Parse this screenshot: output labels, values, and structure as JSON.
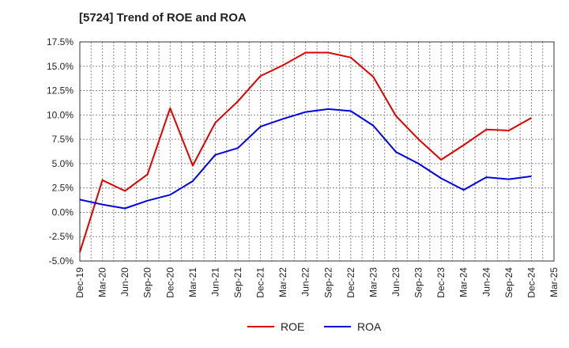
{
  "chart_data": {
    "type": "line",
    "title": "[5724]  Trend of ROE and ROA",
    "xlabel": "",
    "ylabel": "",
    "categories": [
      "Dec-19",
      "Mar-20",
      "Jun-20",
      "Sep-20",
      "Dec-20",
      "Mar-21",
      "Jun-21",
      "Sep-21",
      "Dec-21",
      "Mar-22",
      "Jun-22",
      "Sep-22",
      "Dec-22",
      "Mar-23",
      "Jun-23",
      "Sep-23",
      "Dec-23",
      "Mar-24",
      "Jun-24",
      "Sep-24",
      "Dec-24",
      "Mar-25"
    ],
    "ylim": [
      -5.0,
      17.5
    ],
    "yticks": [
      17.5,
      15.0,
      12.5,
      10.0,
      7.5,
      5.0,
      2.5,
      0.0,
      -2.5,
      -5.0
    ],
    "ytick_labels": [
      "17.5%",
      "15.0%",
      "12.5%",
      "10.0%",
      "7.5%",
      "5.0%",
      "2.5%",
      "0.0%",
      "-2.5%",
      "-5.0%"
    ],
    "grid": true,
    "legend_position": "bottom",
    "series": [
      {
        "name": "ROE",
        "color": "#e00000",
        "values": [
          -4.1,
          3.3,
          2.2,
          3.9,
          10.7,
          4.8,
          9.2,
          11.4,
          14.0,
          15.1,
          16.4,
          16.4,
          15.9,
          13.9,
          9.9,
          7.5,
          5.4,
          6.9,
          8.5,
          8.4,
          9.7,
          null
        ]
      },
      {
        "name": "ROA",
        "color": "#0000e0",
        "values": [
          1.3,
          0.8,
          0.4,
          1.2,
          1.8,
          3.2,
          5.9,
          6.6,
          8.8,
          9.6,
          10.3,
          10.6,
          10.4,
          8.9,
          6.2,
          5.0,
          3.5,
          2.3,
          3.6,
          3.4,
          3.7,
          null
        ]
      }
    ]
  }
}
